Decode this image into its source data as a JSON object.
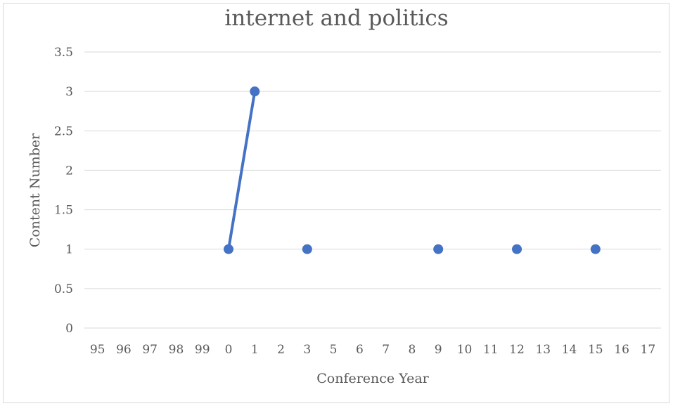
{
  "chart_data": {
    "type": "line",
    "title": "internet and politics",
    "xlabel": "Conference Year",
    "ylabel": "Content Number",
    "categories": [
      "95",
      "96",
      "97",
      "98",
      "99",
      "0",
      "1",
      "2",
      "3",
      "5",
      "6",
      "7",
      "8",
      "9",
      "10",
      "11",
      "12",
      "13",
      "14",
      "15",
      "16",
      "17"
    ],
    "series": [
      {
        "values": [
          null,
          null,
          null,
          null,
          null,
          1,
          3,
          null,
          1,
          null,
          null,
          null,
          null,
          1,
          null,
          null,
          1,
          null,
          null,
          1,
          null,
          null
        ]
      }
    ],
    "ylim": [
      0,
      3.5
    ],
    "yticks": [
      "0",
      "0.5",
      "1",
      "1.5",
      "2",
      "2.5",
      "3",
      "3.5"
    ],
    "grid": true,
    "legend": "none",
    "colors": {
      "series": "#4472c4",
      "grid": "#d9d9d9",
      "text": "#595959"
    }
  }
}
